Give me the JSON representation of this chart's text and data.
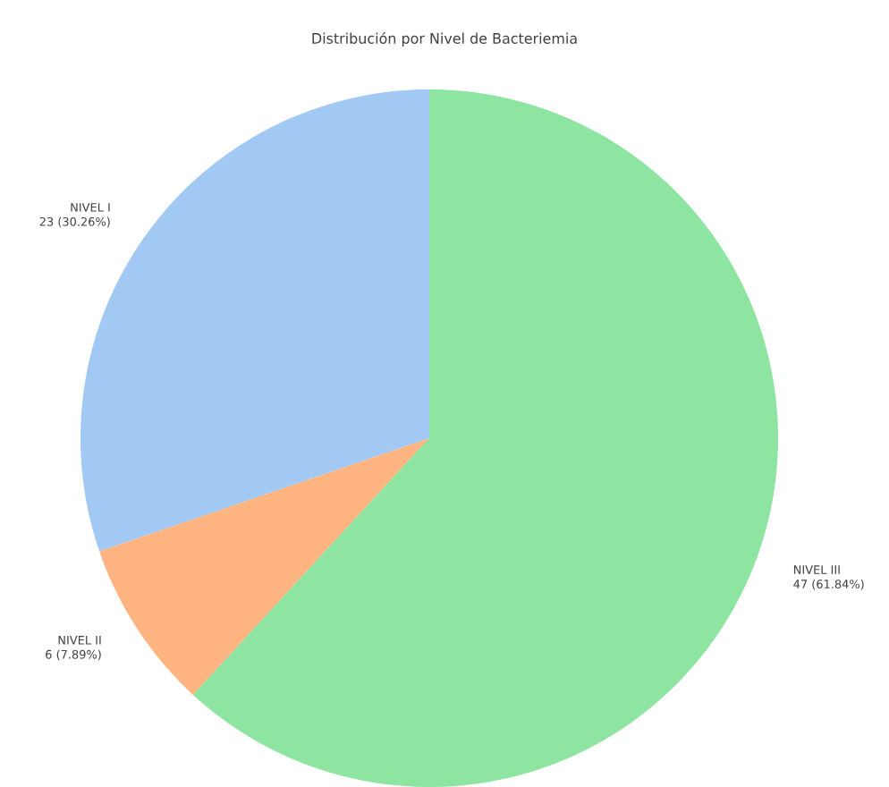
{
  "chart_data": {
    "type": "pie",
    "title": "Distribución por Nivel de Bacteriemia",
    "categories": [
      "NIVEL I",
      "NIVEL II",
      "NIVEL III"
    ],
    "values": [
      23,
      6,
      47
    ],
    "value_labels": [
      "23 (30.26%)",
      "6 (7.89%)",
      "47 (61.84%)"
    ],
    "colors": [
      "#a1c9f4",
      "#ffb482",
      "#8de5a1"
    ]
  }
}
